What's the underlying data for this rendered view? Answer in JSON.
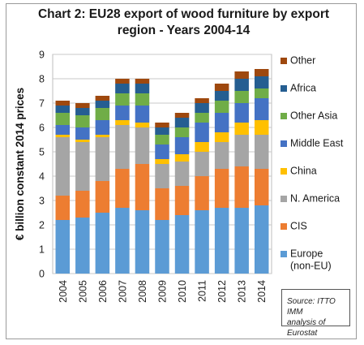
{
  "title_line1": "Chart 2: EU28 export of wood furniture by export",
  "title_line2": "region - Years 2004-14",
  "source_line1": "Source: ITTO IMM",
  "source_line2": "analysis of Eurostat",
  "chart_data": {
    "type": "bar",
    "stacked": true,
    "ylabel": "€ billion constant 2014 prices",
    "xlabel": "",
    "ylim": [
      0,
      9
    ],
    "yticks": [
      0,
      1,
      2,
      3,
      4,
      5,
      6,
      7,
      8,
      9
    ],
    "grid": true,
    "legend_position": "right",
    "categories": [
      "2004",
      "2005",
      "2006",
      "2007",
      "2008",
      "2009",
      "2010",
      "2011",
      "2012",
      "2013",
      "2014"
    ],
    "series": [
      {
        "name": "Europe (non-EU)",
        "legend_lines": [
          "Europe",
          "(non-EU)"
        ],
        "color": "#5b9bd5",
        "values": [
          2.2,
          2.3,
          2.5,
          2.7,
          2.6,
          2.2,
          2.4,
          2.6,
          2.7,
          2.7,
          2.8
        ]
      },
      {
        "name": "CIS",
        "legend_lines": [
          "CIS"
        ],
        "color": "#ed7d31",
        "values": [
          1.0,
          1.1,
          1.3,
          1.6,
          1.9,
          1.3,
          1.2,
          1.4,
          1.6,
          1.7,
          1.5
        ]
      },
      {
        "name": "N. America",
        "legend_lines": [
          "N. America"
        ],
        "color": "#a5a5a5",
        "values": [
          2.4,
          2.0,
          1.8,
          1.8,
          1.5,
          1.0,
          1.0,
          1.0,
          1.1,
          1.3,
          1.4
        ]
      },
      {
        "name": "China",
        "legend_lines": [
          "China"
        ],
        "color": "#ffc000",
        "values": [
          0.1,
          0.1,
          0.1,
          0.2,
          0.2,
          0.2,
          0.3,
          0.4,
          0.4,
          0.5,
          0.6
        ]
      },
      {
        "name": "Middle East",
        "legend_lines": [
          "Middle East"
        ],
        "color": "#4472c4",
        "values": [
          0.4,
          0.5,
          0.6,
          0.6,
          0.7,
          0.6,
          0.7,
          0.8,
          0.8,
          0.8,
          0.9
        ]
      },
      {
        "name": "Other Asia",
        "legend_lines": [
          "Other Asia"
        ],
        "color": "#70ad47",
        "values": [
          0.5,
          0.5,
          0.5,
          0.5,
          0.5,
          0.4,
          0.4,
          0.4,
          0.5,
          0.5,
          0.4
        ]
      },
      {
        "name": "Africa",
        "legend_lines": [
          "Africa"
        ],
        "color": "#255e91",
        "values": [
          0.3,
          0.3,
          0.3,
          0.4,
          0.4,
          0.3,
          0.4,
          0.4,
          0.4,
          0.5,
          0.5
        ]
      },
      {
        "name": "Other",
        "legend_lines": [
          "Other"
        ],
        "color": "#9e480e",
        "values": [
          0.2,
          0.2,
          0.2,
          0.2,
          0.2,
          0.2,
          0.2,
          0.2,
          0.3,
          0.3,
          0.3
        ]
      }
    ]
  }
}
